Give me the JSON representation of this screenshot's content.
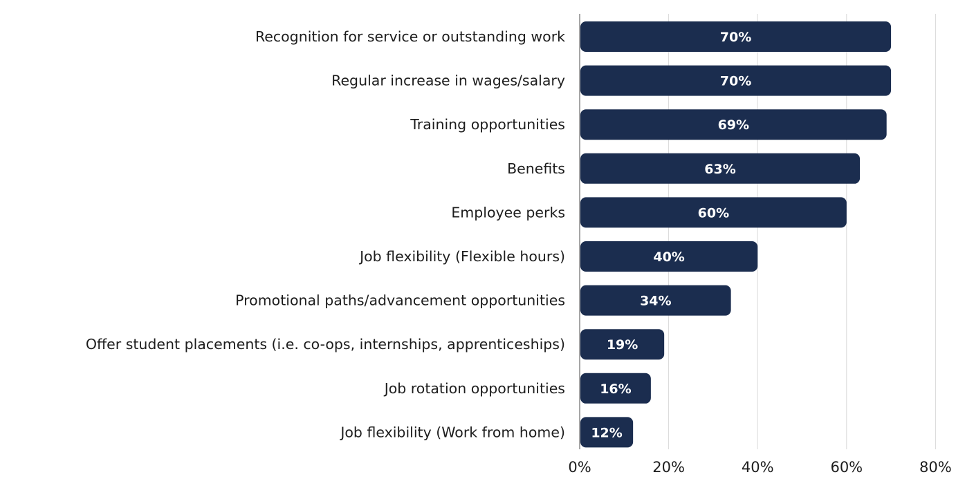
{
  "chart_data": {
    "type": "bar",
    "orientation": "horizontal",
    "title": "",
    "xlabel": "",
    "ylabel": "",
    "categories": [
      "Recognition for service or outstanding work",
      "Regular increase in wages/salary",
      "Training opportunities",
      "Benefits",
      "Employee perks",
      "Job flexibility (Flexible hours)",
      "Promotional paths/advancement opportunities",
      "Offer student placements (i.e. co-ops, internships, apprenticeships)",
      "Job rotation opportunities",
      "Job flexibility (Work from home)"
    ],
    "values": [
      70,
      70,
      69,
      63,
      60,
      40,
      34,
      19,
      16,
      12
    ],
    "value_labels": [
      "70%",
      "70%",
      "69%",
      "63%",
      "60%",
      "40%",
      "34%",
      "19%",
      "16%",
      "12%"
    ],
    "xlim": [
      0,
      80
    ],
    "x_ticks": [
      0,
      20,
      40,
      60,
      80
    ],
    "x_tick_labels": [
      "0%",
      "20%",
      "40%",
      "60%",
      "80%"
    ],
    "grid": true,
    "legend": "none",
    "bar_color": "#1b2d4f",
    "value_label_color": "#ffffff",
    "text_color": "#1d1d1d",
    "grid_color": "#d9d9d9"
  }
}
